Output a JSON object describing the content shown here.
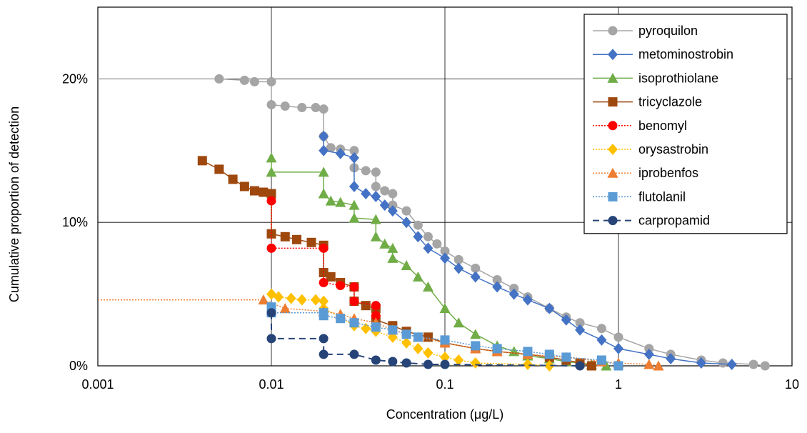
{
  "chart_data": {
    "type": "line",
    "title": "",
    "xlabel": "Concentration (μg/L)",
    "ylabel": "Cumulative proportion of detection",
    "x_scale": "log",
    "xlim": [
      0.001,
      10
    ],
    "ylim": [
      0,
      0.25
    ],
    "x_ticks": [
      {
        "value": 0.001,
        "label": "0.001"
      },
      {
        "value": 0.01,
        "label": "0.01"
      },
      {
        "value": 0.1,
        "label": "0.1"
      },
      {
        "value": 1,
        "label": "1"
      },
      {
        "value": 10,
        "label": "10"
      }
    ],
    "y_ticks": [
      {
        "value": 0,
        "label": "0%"
      },
      {
        "value": 0.1,
        "label": "10%"
      },
      {
        "value": 0.2,
        "label": "20%"
      }
    ],
    "grid": true,
    "legend_position": "top-right",
    "series": [
      {
        "name": "pyroquilon",
        "color": "#a5a5a5",
        "marker": "circle",
        "dash": "solid",
        "line_width": 1.5,
        "lead_in": true,
        "points": [
          [
            0.005,
            0.2
          ],
          [
            0.007,
            0.199
          ],
          [
            0.008,
            0.198
          ],
          [
            0.01,
            0.198
          ],
          [
            0.01,
            0.182
          ],
          [
            0.012,
            0.181
          ],
          [
            0.015,
            0.18
          ],
          [
            0.018,
            0.18
          ],
          [
            0.02,
            0.179
          ],
          [
            0.02,
            0.16
          ],
          [
            0.022,
            0.152
          ],
          [
            0.025,
            0.151
          ],
          [
            0.03,
            0.15
          ],
          [
            0.03,
            0.138
          ],
          [
            0.035,
            0.136
          ],
          [
            0.04,
            0.135
          ],
          [
            0.04,
            0.125
          ],
          [
            0.045,
            0.122
          ],
          [
            0.05,
            0.12
          ],
          [
            0.05,
            0.112
          ],
          [
            0.06,
            0.108
          ],
          [
            0.07,
            0.098
          ],
          [
            0.08,
            0.09
          ],
          [
            0.09,
            0.085
          ],
          [
            0.1,
            0.08
          ],
          [
            0.12,
            0.074
          ],
          [
            0.15,
            0.068
          ],
          [
            0.2,
            0.06
          ],
          [
            0.25,
            0.054
          ],
          [
            0.3,
            0.048
          ],
          [
            0.4,
            0.04
          ],
          [
            0.5,
            0.034
          ],
          [
            0.6,
            0.03
          ],
          [
            0.8,
            0.026
          ],
          [
            1.0,
            0.02
          ],
          [
            1.5,
            0.012
          ],
          [
            2.0,
            0.008
          ],
          [
            3.0,
            0.004
          ],
          [
            4.0,
            0.002
          ],
          [
            6.0,
            0.001
          ],
          [
            7.0,
            0.0
          ]
        ]
      },
      {
        "name": "metominostrobin",
        "color": "#4472c4",
        "marker": "diamond",
        "dash": "solid",
        "line_width": 1.5,
        "points": [
          [
            0.02,
            0.16
          ],
          [
            0.02,
            0.15
          ],
          [
            0.025,
            0.148
          ],
          [
            0.03,
            0.145
          ],
          [
            0.03,
            0.125
          ],
          [
            0.035,
            0.12
          ],
          [
            0.04,
            0.118
          ],
          [
            0.045,
            0.112
          ],
          [
            0.05,
            0.108
          ],
          [
            0.06,
            0.1
          ],
          [
            0.07,
            0.09
          ],
          [
            0.08,
            0.082
          ],
          [
            0.1,
            0.075
          ],
          [
            0.12,
            0.068
          ],
          [
            0.15,
            0.062
          ],
          [
            0.2,
            0.055
          ],
          [
            0.25,
            0.05
          ],
          [
            0.3,
            0.046
          ],
          [
            0.4,
            0.04
          ],
          [
            0.5,
            0.032
          ],
          [
            0.6,
            0.025
          ],
          [
            0.8,
            0.018
          ],
          [
            1.0,
            0.012
          ],
          [
            1.5,
            0.008
          ],
          [
            2.0,
            0.005
          ],
          [
            3.0,
            0.002
          ],
          [
            4.5,
            0.001
          ]
        ]
      },
      {
        "name": "isoprothiolane",
        "color": "#70ad47",
        "marker": "triangle",
        "dash": "solid",
        "line_width": 1.5,
        "points": [
          [
            0.01,
            0.145
          ],
          [
            0.01,
            0.135
          ],
          [
            0.02,
            0.135
          ],
          [
            0.02,
            0.12
          ],
          [
            0.022,
            0.115
          ],
          [
            0.025,
            0.114
          ],
          [
            0.03,
            0.112
          ],
          [
            0.03,
            0.103
          ],
          [
            0.04,
            0.102
          ],
          [
            0.04,
            0.09
          ],
          [
            0.045,
            0.085
          ],
          [
            0.05,
            0.082
          ],
          [
            0.05,
            0.075
          ],
          [
            0.06,
            0.07
          ],
          [
            0.07,
            0.062
          ],
          [
            0.08,
            0.055
          ],
          [
            0.1,
            0.04
          ],
          [
            0.12,
            0.03
          ],
          [
            0.15,
            0.022
          ],
          [
            0.2,
            0.014
          ],
          [
            0.25,
            0.01
          ],
          [
            0.3,
            0.007
          ],
          [
            0.4,
            0.005
          ],
          [
            0.5,
            0.003
          ],
          [
            0.7,
            0.001
          ],
          [
            0.85,
            0.0
          ]
        ]
      },
      {
        "name": "tricyclazole",
        "color": "#9e480e",
        "marker": "square",
        "dash": "solid",
        "line_width": 1.5,
        "points": [
          [
            0.004,
            0.143
          ],
          [
            0.005,
            0.137
          ],
          [
            0.006,
            0.13
          ],
          [
            0.007,
            0.125
          ],
          [
            0.008,
            0.122
          ],
          [
            0.009,
            0.121
          ],
          [
            0.01,
            0.12
          ],
          [
            0.01,
            0.092
          ],
          [
            0.012,
            0.09
          ],
          [
            0.014,
            0.088
          ],
          [
            0.017,
            0.086
          ],
          [
            0.02,
            0.084
          ],
          [
            0.02,
            0.065
          ],
          [
            0.022,
            0.062
          ],
          [
            0.025,
            0.058
          ],
          [
            0.03,
            0.055
          ],
          [
            0.03,
            0.045
          ],
          [
            0.035,
            0.042
          ],
          [
            0.04,
            0.04
          ],
          [
            0.04,
            0.032
          ],
          [
            0.05,
            0.028
          ],
          [
            0.06,
            0.024
          ],
          [
            0.08,
            0.02
          ],
          [
            0.1,
            0.016
          ],
          [
            0.15,
            0.012
          ],
          [
            0.2,
            0.01
          ],
          [
            0.3,
            0.008
          ],
          [
            0.4,
            0.006
          ],
          [
            0.5,
            0.004
          ],
          [
            0.6,
            0.002
          ],
          [
            0.7,
            0.0
          ]
        ]
      },
      {
        "name": "benomyl",
        "color": "#ff0000",
        "marker": "circle",
        "dash": "dotted",
        "line_width": 1.5,
        "points": [
          [
            0.01,
            0.115
          ],
          [
            0.01,
            0.082
          ],
          [
            0.02,
            0.082
          ],
          [
            0.02,
            0.058
          ],
          [
            0.025,
            0.056
          ],
          [
            0.03,
            0.055
          ],
          [
            0.03,
            0.045
          ],
          [
            0.04,
            0.042
          ],
          [
            0.04,
            0.035
          ]
        ]
      },
      {
        "name": "orysastrobin",
        "color": "#ffc000",
        "marker": "diamond",
        "dash": "dotted",
        "line_width": 1.5,
        "points": [
          [
            0.01,
            0.05
          ],
          [
            0.011,
            0.048
          ],
          [
            0.013,
            0.047
          ],
          [
            0.015,
            0.046
          ],
          [
            0.018,
            0.046
          ],
          [
            0.02,
            0.045
          ],
          [
            0.02,
            0.04
          ],
          [
            0.025,
            0.034
          ],
          [
            0.03,
            0.028
          ],
          [
            0.035,
            0.026
          ],
          [
            0.04,
            0.024
          ],
          [
            0.05,
            0.02
          ],
          [
            0.06,
            0.016
          ],
          [
            0.07,
            0.012
          ],
          [
            0.08,
            0.009
          ],
          [
            0.1,
            0.006
          ],
          [
            0.12,
            0.004
          ],
          [
            0.15,
            0.002
          ],
          [
            0.3,
            0.001
          ],
          [
            0.4,
            0.0
          ]
        ]
      },
      {
        "name": "iprobenfos",
        "color": "#ed7d31",
        "marker": "triangle",
        "dash": "dotted",
        "line_width": 1.5,
        "lead_in": true,
        "points": [
          [
            0.009,
            0.046
          ],
          [
            0.012,
            0.04
          ],
          [
            0.02,
            0.038
          ],
          [
            0.025,
            0.036
          ],
          [
            0.03,
            0.033
          ],
          [
            0.04,
            0.03
          ],
          [
            0.05,
            0.025
          ],
          [
            0.07,
            0.02
          ],
          [
            0.1,
            0.016
          ],
          [
            0.15,
            0.012
          ],
          [
            0.2,
            0.01
          ],
          [
            0.3,
            0.008
          ],
          [
            0.5,
            0.006
          ],
          [
            0.8,
            0.003
          ],
          [
            1.0,
            0.002
          ],
          [
            1.5,
            0.001
          ],
          [
            1.7,
            0.0
          ]
        ]
      },
      {
        "name": "flutolanil",
        "color": "#5b9bd5",
        "marker": "square",
        "dash": "dotted",
        "line_width": 1.5,
        "points": [
          [
            0.01,
            0.041
          ],
          [
            0.01,
            0.037
          ],
          [
            0.02,
            0.037
          ],
          [
            0.02,
            0.035
          ],
          [
            0.025,
            0.033
          ],
          [
            0.03,
            0.03
          ],
          [
            0.04,
            0.027
          ],
          [
            0.05,
            0.025
          ],
          [
            0.06,
            0.022
          ],
          [
            0.07,
            0.02
          ],
          [
            0.1,
            0.018
          ],
          [
            0.15,
            0.014
          ],
          [
            0.2,
            0.012
          ],
          [
            0.3,
            0.01
          ],
          [
            0.4,
            0.008
          ],
          [
            0.5,
            0.006
          ],
          [
            0.8,
            0.004
          ],
          [
            1.0,
            0.0
          ]
        ]
      },
      {
        "name": "carpropamid",
        "color": "#264478",
        "marker": "circle",
        "dash": "dashed",
        "line_width": 2,
        "points": [
          [
            0.01,
            0.037
          ],
          [
            0.01,
            0.019
          ],
          [
            0.02,
            0.019
          ],
          [
            0.02,
            0.008
          ],
          [
            0.03,
            0.008
          ],
          [
            0.04,
            0.004
          ],
          [
            0.05,
            0.003
          ],
          [
            0.06,
            0.002
          ],
          [
            0.08,
            0.001
          ],
          [
            0.1,
            0.001
          ],
          [
            0.6,
            0.0
          ]
        ]
      }
    ]
  }
}
